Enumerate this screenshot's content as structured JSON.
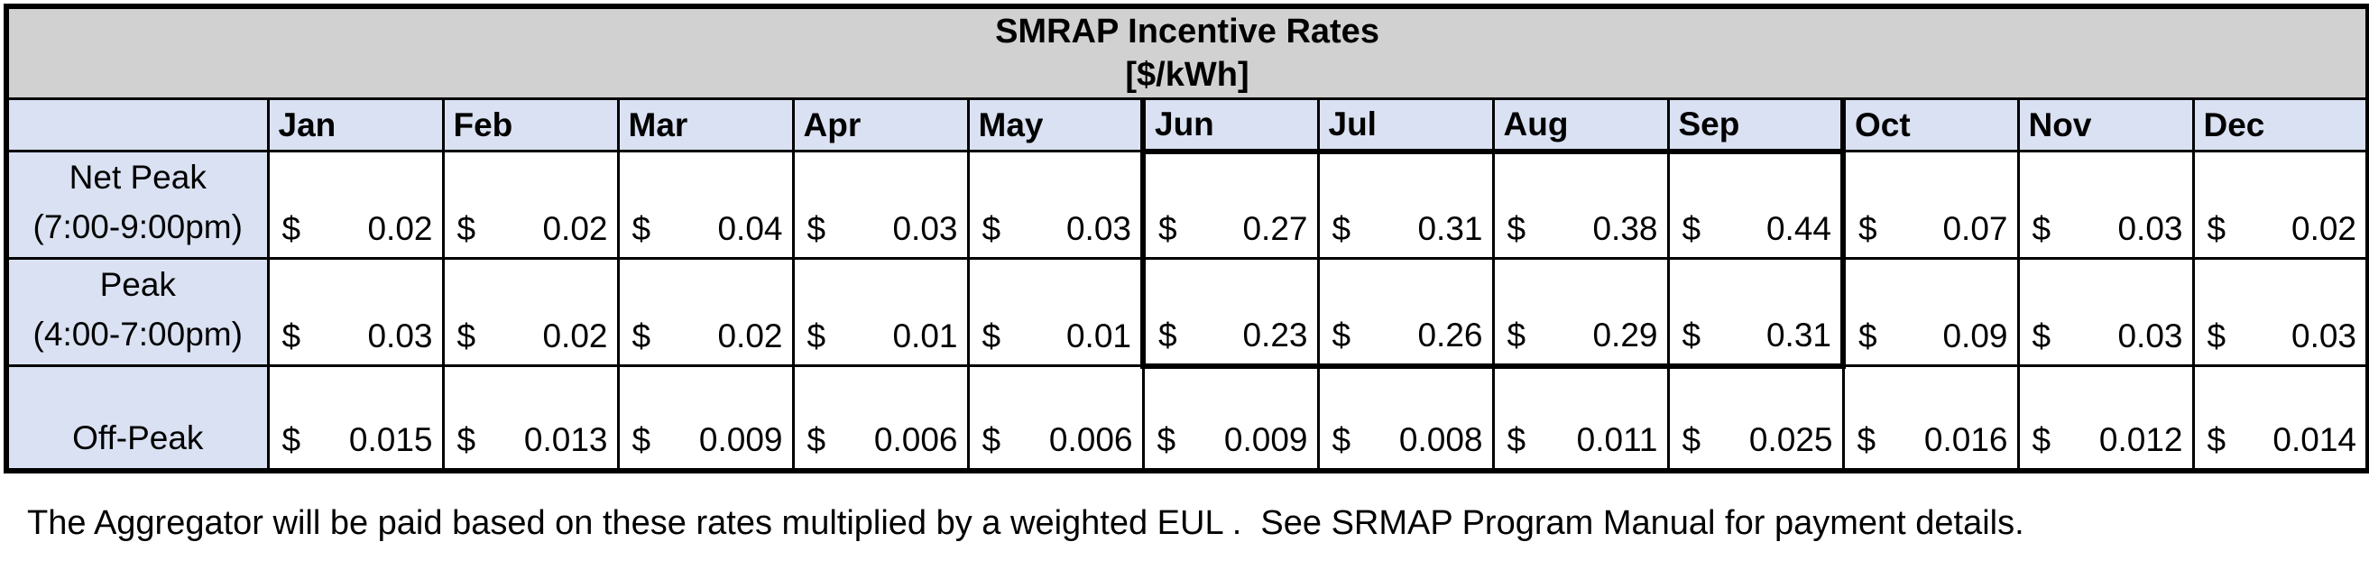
{
  "table": {
    "title_line1": "SMRAP Incentive Rates",
    "title_line2": "[$/kWh]",
    "months": [
      "Jan",
      "Feb",
      "Mar",
      "Apr",
      "May",
      "Jun",
      "Jul",
      "Aug",
      "Sep",
      "Oct",
      "Nov",
      "Dec"
    ],
    "currency_symbol": "$",
    "rows": [
      {
        "id": "net-peak",
        "label_lines": [
          "Net Peak",
          "(7:00-9:00pm)"
        ],
        "values": [
          "0.02",
          "0.02",
          "0.04",
          "0.03",
          "0.03",
          "0.27",
          "0.31",
          "0.38",
          "0.44",
          "0.07",
          "0.03",
          "0.02"
        ],
        "highlight_in_summer": true
      },
      {
        "id": "peak",
        "label_lines": [
          "Peak",
          "(4:00-7:00pm)"
        ],
        "values": [
          "0.03",
          "0.02",
          "0.02",
          "0.01",
          "0.01",
          "0.23",
          "0.26",
          "0.29",
          "0.31",
          "0.09",
          "0.03",
          "0.03"
        ],
        "highlight_in_summer": true
      },
      {
        "id": "off-peak",
        "label_lines": [
          "Off-Peak"
        ],
        "values": [
          "0.015",
          "0.013",
          "0.009",
          "0.006",
          "0.006",
          "0.009",
          "0.008",
          "0.011",
          "0.025",
          "0.016",
          "0.012",
          "0.014"
        ],
        "highlight_in_summer": false
      }
    ],
    "highlight": {
      "start_month_index": 5,
      "end_month_index": 8,
      "months": [
        "Jun",
        "Jul",
        "Aug",
        "Sep"
      ],
      "fill_color": "#e2efda"
    }
  },
  "footer": {
    "text": "The Aggregator will be paid based on these rates multiplied by a weighted EUL .  See SRMAP Program Manual for payment details."
  },
  "colors": {
    "title_bg": "#d1d1d1",
    "header_bg": "#d9e1f2",
    "highlight_bg": "#e2efda",
    "cell_bg": "#ffffff",
    "border": "#000000",
    "text": "#000000"
  }
}
